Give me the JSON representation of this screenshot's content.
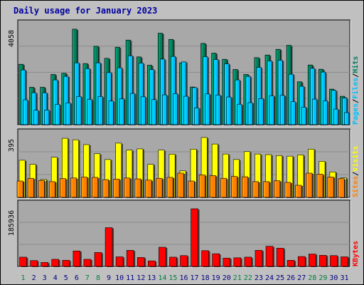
{
  "title": "Daily usage for January 2023",
  "colors": {
    "background": "#c0c0c0",
    "plot": "#a8a8a8",
    "hits": "#00805c",
    "files": "#00c0ff",
    "pages": "#00c0ff",
    "visits": "#ffff00",
    "sites": "#ff8000",
    "kbytes": "#ff0000",
    "title": "#0000a0",
    "weekend_label": "#008040",
    "weekday_label": "#000080"
  },
  "chart_data": [
    {
      "type": "bar",
      "panel": "hits-files-pages",
      "ymax_label": "4058",
      "ymax": 4058,
      "legend": [
        {
          "text": "Pages",
          "color": "#00c0ff"
        },
        {
          "text": "/",
          "color": "#000000"
        },
        {
          "text": "Files",
          "color": "#00c0ff"
        },
        {
          "text": "/",
          "color": "#000000"
        },
        {
          "text": "Hits",
          "color": "#00805c"
        }
      ],
      "categories": [
        "1",
        "2",
        "3",
        "4",
        "5",
        "6",
        "7",
        "8",
        "9",
        "10",
        "11",
        "12",
        "13",
        "14",
        "15",
        "16",
        "17",
        "18",
        "19",
        "20",
        "21",
        "22",
        "23",
        "24",
        "25",
        "26",
        "27",
        "28",
        "29",
        "30",
        "31"
      ],
      "series": [
        {
          "name": "Hits",
          "values": [
            2550,
            1580,
            1580,
            2120,
            2170,
            4030,
            2580,
            3310,
            2800,
            3270,
            3570,
            2860,
            2510,
            3860,
            3600,
            2610,
            1590,
            3430,
            3020,
            2760,
            2330,
            2120,
            2830,
            2940,
            3180,
            3350,
            1810,
            2520,
            2340,
            1500,
            1200
          ]
        },
        {
          "name": "Files",
          "values": [
            2310,
            1350,
            1350,
            1890,
            2040,
            2610,
            2370,
            2610,
            2200,
            2400,
            2910,
            2600,
            2330,
            2770,
            2880,
            2650,
            1570,
            2870,
            2750,
            2570,
            1890,
            2040,
            2420,
            2690,
            2720,
            2130,
            1620,
            2380,
            2220,
            1450,
            1130
          ]
        },
        {
          "name": "Pages",
          "values": [
            1050,
            610,
            620,
            860,
            920,
            1190,
            1070,
            1190,
            1000,
            1090,
            1320,
            1180,
            1060,
            1260,
            1310,
            1200,
            710,
            1300,
            1250,
            1170,
            860,
            930,
            1100,
            1220,
            1240,
            970,
            740,
            1080,
            1010,
            660,
            510
          ]
        }
      ]
    },
    {
      "type": "bar",
      "panel": "visits-sites",
      "ymax_label": "395",
      "ymax": 395,
      "legend": [
        {
          "text": "Sites",
          "color": "#ff8000"
        },
        {
          "text": "/",
          "color": "#000000"
        },
        {
          "text": "Visits",
          "color": "#ffff00"
        }
      ],
      "categories": [
        "1",
        "2",
        "3",
        "4",
        "5",
        "6",
        "7",
        "8",
        "9",
        "10",
        "11",
        "12",
        "13",
        "14",
        "15",
        "16",
        "17",
        "18",
        "19",
        "20",
        "21",
        "22",
        "23",
        "24",
        "25",
        "26",
        "27",
        "28",
        "29",
        "30",
        "31"
      ],
      "series": [
        {
          "name": "Visits",
          "values": [
            245,
            218,
            118,
            265,
            390,
            380,
            348,
            288,
            250,
            358,
            312,
            320,
            218,
            312,
            285,
            175,
            318,
            395,
            352,
            286,
            250,
            302,
            286,
            282,
            276,
            272,
            280,
            318,
            238,
            168,
            128
          ]
        },
        {
          "name": "Sites",
          "values": [
            108,
            126,
            112,
            104,
            124,
            128,
            134,
            132,
            117,
            121,
            128,
            122,
            114,
            126,
            132,
            160,
            108,
            148,
            144,
            126,
            138,
            136,
            104,
            104,
            110,
            99,
            80,
            160,
            153,
            135,
            123
          ]
        }
      ]
    },
    {
      "type": "bar",
      "panel": "kbytes",
      "ymax_label": "185936",
      "ymax": 185936,
      "legend": [
        {
          "text": "KBytes",
          "color": "#ff0000"
        }
      ],
      "categories": [
        "1",
        "2",
        "3",
        "4",
        "5",
        "6",
        "7",
        "8",
        "9",
        "10",
        "11",
        "12",
        "13",
        "14",
        "15",
        "16",
        "17",
        "18",
        "19",
        "20",
        "21",
        "22",
        "23",
        "24",
        "25",
        "26",
        "27",
        "28",
        "29",
        "30",
        "31"
      ],
      "series": [
        {
          "name": "KBytes",
          "values": [
            30000,
            19000,
            13000,
            23000,
            20000,
            50000,
            23000,
            45000,
            125000,
            31000,
            52000,
            29000,
            18000,
            62000,
            30000,
            35000,
            185936,
            51000,
            41000,
            27000,
            28000,
            30000,
            52000,
            65000,
            59000,
            20000,
            32000,
            40000,
            36000,
            35000,
            31000
          ]
        }
      ]
    }
  ],
  "day_labels": [
    {
      "text": "1",
      "weekend": true
    },
    {
      "text": "2",
      "weekend": false
    },
    {
      "text": "3",
      "weekend": false
    },
    {
      "text": "4",
      "weekend": false
    },
    {
      "text": "5",
      "weekend": false
    },
    {
      "text": "6",
      "weekend": false
    },
    {
      "text": "7",
      "weekend": true
    },
    {
      "text": "8",
      "weekend": true
    },
    {
      "text": "9",
      "weekend": false
    },
    {
      "text": "10",
      "weekend": false
    },
    {
      "text": "11",
      "weekend": false
    },
    {
      "text": "12",
      "weekend": false
    },
    {
      "text": "13",
      "weekend": false
    },
    {
      "text": "14",
      "weekend": true
    },
    {
      "text": "15",
      "weekend": true
    },
    {
      "text": "16",
      "weekend": false
    },
    {
      "text": "17",
      "weekend": false
    },
    {
      "text": "18",
      "weekend": false
    },
    {
      "text": "19",
      "weekend": false
    },
    {
      "text": "20",
      "weekend": false
    },
    {
      "text": "21",
      "weekend": true
    },
    {
      "text": "22",
      "weekend": true
    },
    {
      "text": "23",
      "weekend": false
    },
    {
      "text": "24",
      "weekend": false
    },
    {
      "text": "25",
      "weekend": false
    },
    {
      "text": "26",
      "weekend": false
    },
    {
      "text": "27",
      "weekend": false
    },
    {
      "text": "28",
      "weekend": true
    },
    {
      "text": "29",
      "weekend": true
    },
    {
      "text": "30",
      "weekend": false
    },
    {
      "text": "31",
      "weekend": false
    }
  ]
}
